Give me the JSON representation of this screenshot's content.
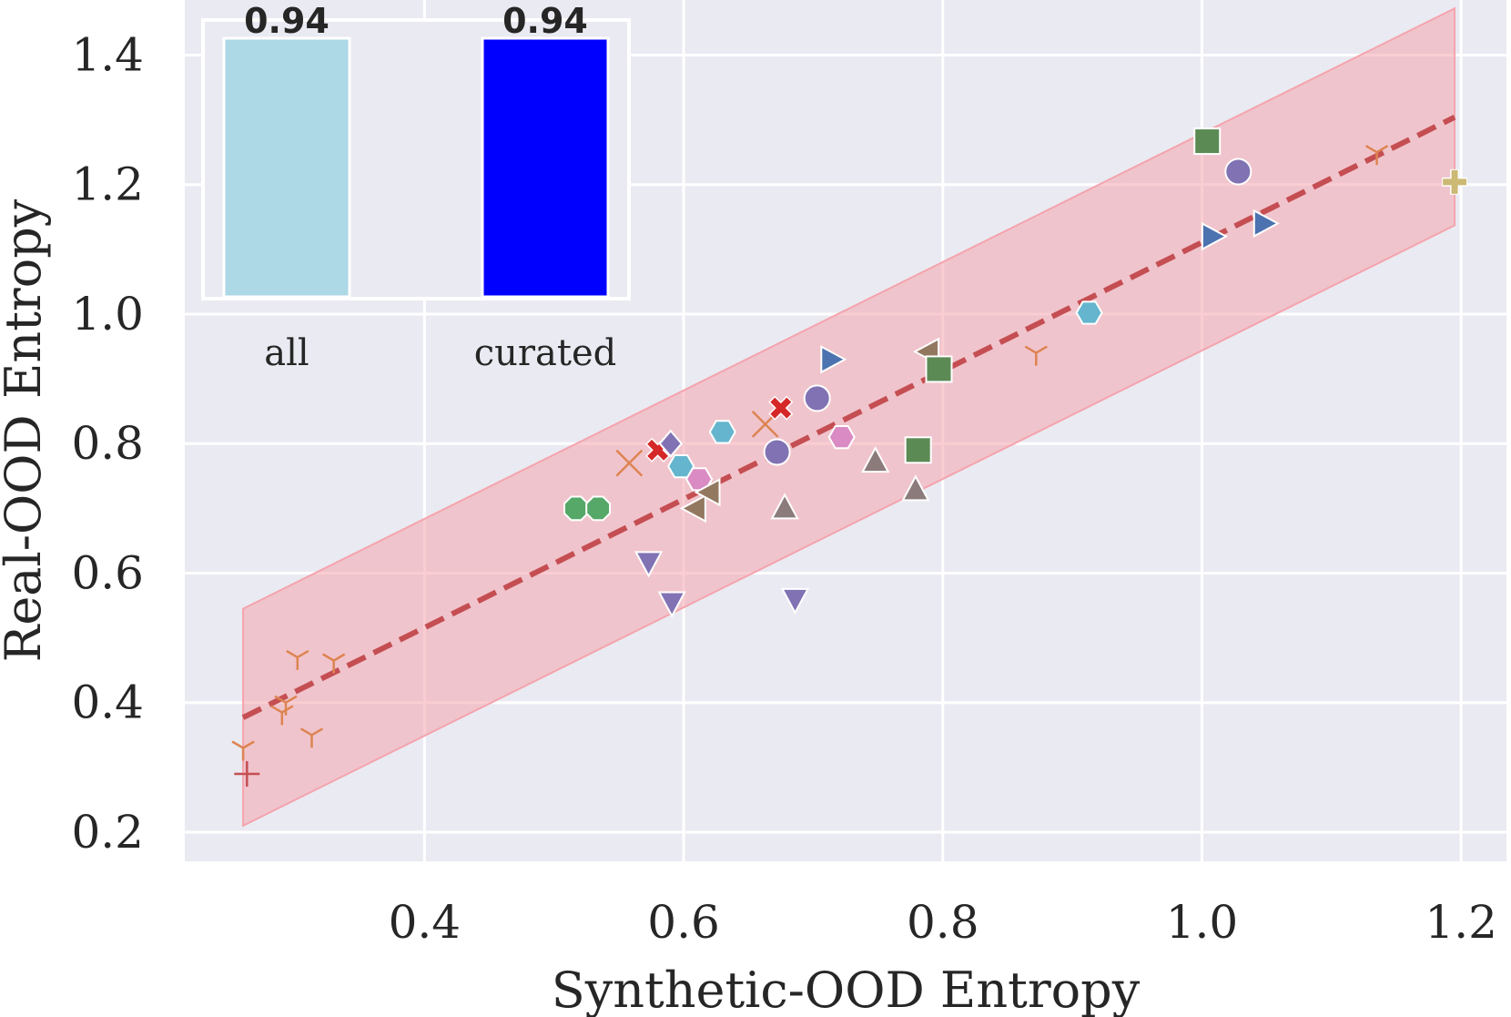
{
  "chart_data": [
    {
      "type": "scatter",
      "title": "",
      "xlabel": "Synthetic-OOD Entropy",
      "ylabel": "Real-OOD Entropy",
      "xlim": [
        0.215,
        1.235
      ],
      "ylim": [
        0.155,
        1.485
      ],
      "xticks": [
        "0.4",
        "0.6",
        "0.8",
        "1.0",
        "1.2"
      ],
      "yticks": [
        "0.2",
        "0.4",
        "0.6",
        "0.8",
        "1.0",
        "1.2",
        "1.4"
      ],
      "grid": true,
      "fit_line": {
        "x": [
          0.26,
          1.195
        ],
        "y": [
          0.377,
          1.304
        ],
        "color": "#c44e52",
        "style": "dashed"
      },
      "band": {
        "x": [
          0.26,
          1.195
        ],
        "upper": [
          0.545,
          1.472
        ],
        "lower": [
          0.21,
          1.137
        ],
        "color": "#f4a4ad"
      },
      "points": [
        {
          "x": 0.26,
          "y": 0.33,
          "marker": "tri-down",
          "color": "#dd8452"
        },
        {
          "x": 0.29,
          "y": 0.385,
          "marker": "tri-down",
          "color": "#dd8452"
        },
        {
          "x": 0.293,
          "y": 0.4,
          "marker": "tri-down",
          "color": "#dd8452"
        },
        {
          "x": 0.302,
          "y": 0.47,
          "marker": "tri-down",
          "color": "#dd8452"
        },
        {
          "x": 0.313,
          "y": 0.35,
          "marker": "tri-down",
          "color": "#dd8452"
        },
        {
          "x": 0.33,
          "y": 0.465,
          "marker": "tri-down",
          "color": "#dd8452"
        },
        {
          "x": 0.872,
          "y": 0.94,
          "marker": "tri-down",
          "color": "#dd8452"
        },
        {
          "x": 1.135,
          "y": 1.25,
          "marker": "tri-down",
          "color": "#dd8452"
        },
        {
          "x": 0.263,
          "y": 0.29,
          "marker": "plus-thin",
          "color": "#c44e52"
        },
        {
          "x": 0.558,
          "y": 0.77,
          "marker": "x-thin",
          "color": "#dd8452"
        },
        {
          "x": 0.663,
          "y": 0.83,
          "marker": "x-thin",
          "color": "#dd8452"
        },
        {
          "x": 0.58,
          "y": 0.79,
          "marker": "x-filled",
          "color": "#d62728"
        },
        {
          "x": 0.675,
          "y": 0.855,
          "marker": "x-filled",
          "color": "#d62728"
        },
        {
          "x": 0.517,
          "y": 0.7,
          "marker": "octagon",
          "color": "#55a868"
        },
        {
          "x": 0.534,
          "y": 0.7,
          "marker": "octagon",
          "color": "#55a868"
        },
        {
          "x": 0.59,
          "y": 0.8,
          "marker": "diamond",
          "color": "#8172b3"
        },
        {
          "x": 0.598,
          "y": 0.765,
          "marker": "hexagon",
          "color": "#64b5cd"
        },
        {
          "x": 0.63,
          "y": 0.818,
          "marker": "hexagon",
          "color": "#64b5cd"
        },
        {
          "x": 0.913,
          "y": 1.002,
          "marker": "hexagon",
          "color": "#64b5cd"
        },
        {
          "x": 0.612,
          "y": 0.745,
          "marker": "hexagon",
          "color": "#da8bc3"
        },
        {
          "x": 0.722,
          "y": 0.81,
          "marker": "hexagon",
          "color": "#da8bc3"
        },
        {
          "x": 0.609,
          "y": 0.7,
          "marker": "tri-left",
          "color": "#937860"
        },
        {
          "x": 0.62,
          "y": 0.725,
          "marker": "tri-left",
          "color": "#937860"
        },
        {
          "x": 0.789,
          "y": 0.942,
          "marker": "tri-left",
          "color": "#937860"
        },
        {
          "x": 0.672,
          "y": 0.787,
          "marker": "circle",
          "color": "#8172b3"
        },
        {
          "x": 0.703,
          "y": 0.87,
          "marker": "circle",
          "color": "#8172b3"
        },
        {
          "x": 1.028,
          "y": 1.22,
          "marker": "circle",
          "color": "#8172b3"
        },
        {
          "x": 0.714,
          "y": 0.93,
          "marker": "tri-right",
          "color": "#4c72b0"
        },
        {
          "x": 1.008,
          "y": 1.12,
          "marker": "tri-right",
          "color": "#4c72b0"
        },
        {
          "x": 1.048,
          "y": 1.14,
          "marker": "tri-right",
          "color": "#4c72b0"
        },
        {
          "x": 0.573,
          "y": 0.617,
          "marker": "tri-down-filled",
          "color": "#8172b3"
        },
        {
          "x": 0.591,
          "y": 0.555,
          "marker": "tri-down-filled",
          "color": "#8172b3"
        },
        {
          "x": 0.686,
          "y": 0.56,
          "marker": "tri-down-filled",
          "color": "#8172b3"
        },
        {
          "x": 0.678,
          "y": 0.7,
          "marker": "tri-up",
          "color": "#8c7b7b"
        },
        {
          "x": 0.748,
          "y": 0.772,
          "marker": "tri-up",
          "color": "#8c7b7b"
        },
        {
          "x": 0.779,
          "y": 0.728,
          "marker": "tri-up",
          "color": "#8c7b7b"
        },
        {
          "x": 0.797,
          "y": 0.915,
          "marker": "square",
          "color": "#5c8a55"
        },
        {
          "x": 0.781,
          "y": 0.79,
          "marker": "square",
          "color": "#5c8a55"
        },
        {
          "x": 1.004,
          "y": 1.267,
          "marker": "square",
          "color": "#5c8a55"
        },
        {
          "x": 1.195,
          "y": 1.204,
          "marker": "plus-filled",
          "color": "#ccb974"
        }
      ]
    },
    {
      "type": "bar",
      "categories": [
        "all",
        "curated"
      ],
      "values": [
        0.94,
        0.94
      ],
      "value_labels": [
        "0.94",
        "0.94"
      ],
      "colors": [
        "#add8e6",
        "#0000ff"
      ],
      "ylim": [
        0,
        0.94
      ],
      "legend": "none"
    }
  ]
}
